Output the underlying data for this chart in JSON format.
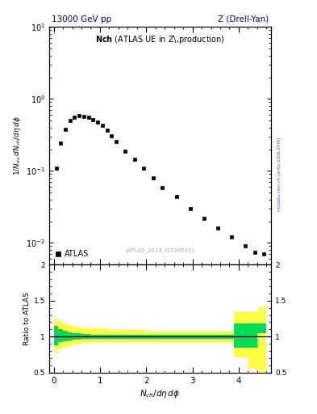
{
  "title_top_left": "13000 GeV pp",
  "title_top_right": "Z (Drell-Yan)",
  "main_title": "Nch (ATLAS UE in Z production)",
  "atlas_label": "ATLAS",
  "watermark": "(ATLAS_2019_I1736531)",
  "right_label": "mcplots.cern.ch [arXiv:1306.3436]",
  "data_x": [
    0.05,
    0.15,
    0.25,
    0.35,
    0.45,
    0.55,
    0.65,
    0.75,
    0.85,
    0.95,
    1.05,
    1.15,
    1.25,
    1.35,
    1.55,
    1.75,
    1.95,
    2.15,
    2.35,
    2.65,
    2.95,
    3.25,
    3.55,
    3.85,
    4.15,
    4.35,
    4.55
  ],
  "data_y": [
    0.108,
    0.245,
    0.38,
    0.5,
    0.56,
    0.58,
    0.575,
    0.56,
    0.52,
    0.48,
    0.43,
    0.37,
    0.31,
    0.255,
    0.19,
    0.145,
    0.108,
    0.08,
    0.058,
    0.044,
    0.03,
    0.022,
    0.016,
    0.012,
    0.009,
    0.0075,
    0.007
  ],
  "ylim_main": [
    0.005,
    10
  ],
  "xlim": [
    -0.1,
    4.7
  ],
  "ratio_bins_lo": [
    0.0,
    0.1,
    0.2,
    0.3,
    0.4,
    0.5,
    0.6,
    0.7,
    0.8,
    0.9,
    1.0,
    1.1,
    1.2,
    1.3,
    1.4,
    1.6,
    1.8,
    2.0,
    2.2,
    2.4,
    2.7,
    3.0,
    3.3,
    3.6,
    3.9,
    4.2,
    4.4
  ],
  "ratio_bins_hi": [
    0.1,
    0.2,
    0.3,
    0.4,
    0.5,
    0.6,
    0.7,
    0.8,
    0.9,
    1.0,
    1.1,
    1.2,
    1.3,
    1.4,
    1.6,
    1.8,
    2.0,
    2.2,
    2.4,
    2.7,
    3.0,
    3.3,
    3.6,
    3.9,
    4.2,
    4.4,
    4.6
  ],
  "ratio_green_lo": [
    0.88,
    0.92,
    0.94,
    0.95,
    0.96,
    0.96,
    0.97,
    0.97,
    0.97,
    0.97,
    0.97,
    0.97,
    0.97,
    0.97,
    0.97,
    0.97,
    0.97,
    0.97,
    0.97,
    0.97,
    0.97,
    0.97,
    0.97,
    0.97,
    0.85,
    0.85,
    1.05
  ],
  "ratio_green_hi": [
    1.15,
    1.1,
    1.08,
    1.06,
    1.05,
    1.05,
    1.04,
    1.04,
    1.03,
    1.03,
    1.03,
    1.03,
    1.03,
    1.03,
    1.03,
    1.03,
    1.03,
    1.03,
    1.03,
    1.03,
    1.03,
    1.03,
    1.03,
    1.03,
    1.18,
    1.18,
    1.18
  ],
  "ratio_yellow_lo": [
    0.78,
    0.82,
    0.86,
    0.88,
    0.9,
    0.9,
    0.91,
    0.91,
    0.92,
    0.92,
    0.92,
    0.92,
    0.92,
    0.92,
    0.93,
    0.93,
    0.93,
    0.93,
    0.93,
    0.93,
    0.93,
    0.93,
    0.93,
    0.93,
    0.72,
    0.55,
    0.52
  ],
  "ratio_yellow_hi": [
    1.25,
    1.22,
    1.18,
    1.16,
    1.14,
    1.14,
    1.13,
    1.12,
    1.11,
    1.11,
    1.11,
    1.11,
    1.1,
    1.1,
    1.1,
    1.09,
    1.09,
    1.08,
    1.08,
    1.08,
    1.08,
    1.08,
    1.08,
    1.08,
    1.35,
    1.35,
    1.42
  ],
  "bg_color": "#ffffff",
  "data_color": "#000000",
  "green_color": "#00dd55",
  "yellow_color": "#ffff44",
  "text_color_header": "#000099",
  "right_label_color": "#5555aa",
  "watermark_color": "#aaaaaa",
  "marker": "s",
  "marker_size": 3.5
}
